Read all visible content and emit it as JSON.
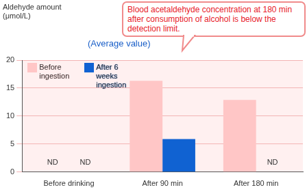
{
  "chart_data": {
    "type": "bar",
    "y_label": [
      "Aldehyde amount",
      "(μmol/L)"
    ],
    "subtitle": "(Average value)",
    "annotation": "Blood acetaldehyde concentration at 180 min after consumption of alcohol is below the detection limit.",
    "categories": [
      "Before drinking",
      "After 90 min",
      "After 180 min"
    ],
    "series": [
      {
        "name": "Before ingestion",
        "color": "#ffc6c6",
        "values": [
          null,
          16.3,
          12.9
        ],
        "value_labels": [
          "ND",
          null,
          null
        ]
      },
      {
        "name": "After 6 weeks ingestion",
        "color": "#1062d2",
        "values": [
          null,
          5.9,
          null
        ],
        "value_labels": [
          "ND",
          null,
          "ND"
        ]
      }
    ],
    "ylim": [
      0,
      20
    ],
    "yticks": [
      0,
      5,
      10,
      15,
      20
    ],
    "grid": true,
    "legend": "upper left"
  }
}
